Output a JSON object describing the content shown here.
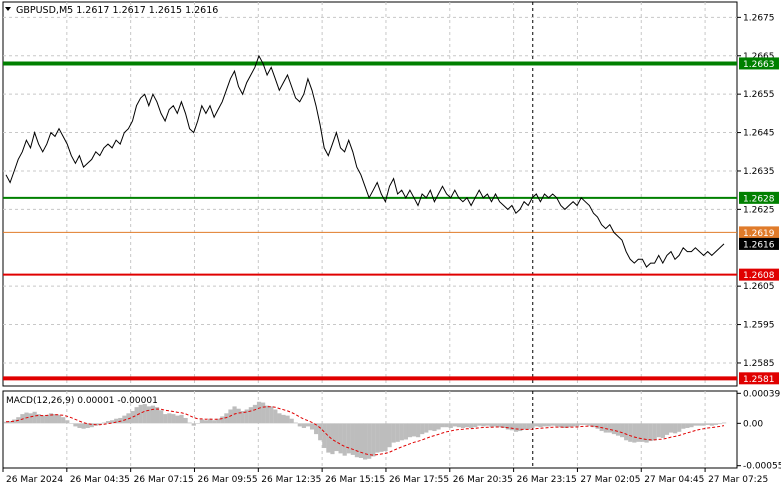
{
  "chart_data": {
    "type": "line",
    "symbol": "GBPUSD",
    "timeframe": "M5",
    "ohlc": [
      "1.2617",
      "1.2617",
      "1.2615",
      "1.2616"
    ],
    "y_ticks": [
      "1.2675",
      "1.2665",
      "1.2655",
      "1.2645",
      "1.2635",
      "1.2625",
      "1.2605",
      "1.2595",
      "1.2585"
    ],
    "ylim": [
      1.2579,
      1.2679
    ],
    "x_ticks": [
      "26 Mar 2024",
      "26 Mar 04:35",
      "26 Mar 07:15",
      "26 Mar 09:55",
      "26 Mar 12:35",
      "26 Mar 15:15",
      "26 Mar 17:55",
      "26 Mar 20:35",
      "26 Mar 23:15",
      "27 Mar 02:05",
      "27 Mar 04:45",
      "27 Mar 07:25"
    ],
    "levels": [
      {
        "value": 1.2663,
        "label": "1.2663",
        "color": "#008000",
        "width": "thick"
      },
      {
        "value": 1.2628,
        "label": "1.2628",
        "color": "#008000",
        "width": "medium"
      },
      {
        "value": 1.2619,
        "label": "1.2619",
        "color": "#e07b2a",
        "width": "thin"
      },
      {
        "value": 1.2616,
        "label": "1.2616",
        "color": "#000000",
        "width": "none"
      },
      {
        "value": 1.2608,
        "label": "1.2608",
        "color": "#e00000",
        "width": "medium"
      },
      {
        "value": 1.2581,
        "label": "1.2581",
        "color": "#e00000",
        "width": "thick"
      }
    ],
    "close_series": [
      1.2634,
      1.2632,
      1.2635,
      1.2638,
      1.264,
      1.2643,
      1.2641,
      1.2645,
      1.2642,
      1.264,
      1.2642,
      1.2645,
      1.2644,
      1.2646,
      1.2644,
      1.2642,
      1.2639,
      1.2637,
      1.2639,
      1.2636,
      1.2637,
      1.2638,
      1.264,
      1.2639,
      1.2641,
      1.2642,
      1.2641,
      1.2643,
      1.2642,
      1.2645,
      1.2646,
      1.2648,
      1.2652,
      1.2654,
      1.2655,
      1.2652,
      1.2655,
      1.2653,
      1.265,
      1.2648,
      1.2651,
      1.2652,
      1.265,
      1.2653,
      1.265,
      1.2646,
      1.2645,
      1.2648,
      1.2652,
      1.265,
      1.2652,
      1.2649,
      1.2651,
      1.2653,
      1.2656,
      1.2659,
      1.2661,
      1.2657,
      1.2655,
      1.2658,
      1.266,
      1.2662,
      1.2665,
      1.2663,
      1.266,
      1.2662,
      1.2659,
      1.2656,
      1.2658,
      1.266,
      1.2657,
      1.2654,
      1.2653,
      1.2655,
      1.2659,
      1.2656,
      1.2652,
      1.2647,
      1.2641,
      1.2639,
      1.2642,
      1.2645,
      1.2641,
      1.264,
      1.2643,
      1.264,
      1.2636,
      1.2634,
      1.2631,
      1.2628,
      1.263,
      1.2632,
      1.2629,
      1.2627,
      1.2631,
      1.2633,
      1.2629,
      1.263,
      1.2628,
      1.263,
      1.2628,
      1.2626,
      1.2629,
      1.2628,
      1.263,
      1.2627,
      1.2629,
      1.2631,
      1.2629,
      1.2628,
      1.263,
      1.2628,
      1.2627,
      1.2628,
      1.2626,
      1.2628,
      1.263,
      1.2628,
      1.2629,
      1.2627,
      1.2629,
      1.2627,
      1.2626,
      1.2625,
      1.2626,
      1.2624,
      1.2625,
      1.2627,
      1.2626,
      1.2628,
      1.2629,
      1.2627,
      1.2629,
      1.2628,
      1.2629,
      1.2628,
      1.2626,
      1.2625,
      1.2626,
      1.2627,
      1.2626,
      1.2628,
      1.2627,
      1.2626,
      1.2624,
      1.2623,
      1.2621,
      1.262,
      1.2621,
      1.2619,
      1.2618,
      1.2617,
      1.2614,
      1.2612,
      1.2611,
      1.2612,
      1.2612,
      1.261,
      1.2611,
      1.2611,
      1.2613,
      1.2611,
      1.2613,
      1.2614,
      1.2612,
      1.2613,
      1.2615,
      1.2614,
      1.2614,
      1.2615,
      1.2614,
      1.2613,
      1.2614,
      1.2613,
      1.2614,
      1.2615,
      1.2616
    ],
    "macd": {
      "label": "MACD(12,26,9)",
      "values": [
        "0.00001",
        "-0.00001"
      ],
      "y_ticks": [
        "0.00039",
        "0.00",
        "-0.00055"
      ],
      "ylim": [
        -0.00058,
        0.00042
      ],
      "histogram": [
        2e-05,
        3e-05,
        5e-05,
        8e-05,
        0.00012,
        0.00014,
        0.00013,
        0.00015,
        0.00012,
        0.0001,
        0.00011,
        0.00013,
        0.00012,
        0.00011,
        8e-05,
        4e-05,
        0.0,
        -4e-05,
        -6e-05,
        -7e-05,
        -6e-05,
        -5e-05,
        -3e-05,
        -2e-05,
        1e-05,
        3e-05,
        4e-05,
        6e-05,
        7e-05,
        0.0001,
        0.00013,
        0.00016,
        0.00021,
        0.00024,
        0.00025,
        0.00022,
        0.00023,
        0.00021,
        0.00017,
        0.00012,
        0.00013,
        0.00012,
        0.0001,
        0.00011,
        7e-05,
        1e-05,
        -3e-05,
        0.0,
        5e-05,
        4e-05,
        6e-05,
        4e-05,
        6e-05,
        9e-05,
        0.00013,
        0.00018,
        0.00022,
        0.00019,
        0.00016,
        0.00018,
        0.00021,
        0.00024,
        0.00028,
        0.00027,
        0.00023,
        0.00022,
        0.00018,
        0.00013,
        0.00011,
        0.0001,
        6e-05,
        1e-05,
        -4e-05,
        -6e-05,
        -4e-05,
        -8e-05,
        -0.00014,
        -0.00022,
        -0.00032,
        -0.00038,
        -0.0004,
        -0.00036,
        -0.00039,
        -0.00042,
        -0.00039,
        -0.00041,
        -0.00044,
        -0.00045,
        -0.00047,
        -0.00046,
        -0.00043,
        -0.00038,
        -0.00037,
        -0.00036,
        -0.00031,
        -0.00025,
        -0.00024,
        -0.00022,
        -0.00021,
        -0.00018,
        -0.00017,
        -0.00018,
        -0.00014,
        -0.00012,
        -9e-05,
        -0.0001,
        -8e-05,
        -5e-05,
        -5e-05,
        -6e-05,
        -4e-05,
        -5e-05,
        -6e-05,
        -5e-05,
        -6e-05,
        -5e-05,
        -3e-05,
        -4e-05,
        -3e-05,
        -5e-05,
        -4e-05,
        -5e-05,
        -6e-05,
        -8e-05,
        -9e-05,
        -0.00011,
        -0.0001,
        -8e-05,
        -8e-05,
        -6e-05,
        -4e-05,
        -5e-05,
        -4e-05,
        -4e-05,
        -3e-05,
        -4e-05,
        -5e-05,
        -6e-05,
        -5e-05,
        -4e-05,
        -4e-05,
        -2e-05,
        -2e-05,
        -3e-05,
        -5e-05,
        -7e-05,
        -0.0001,
        -0.00012,
        -0.00012,
        -0.00014,
        -0.00016,
        -0.00018,
        -0.00022,
        -0.00024,
        -0.00025,
        -0.00024,
        -0.00024,
        -0.00025,
        -0.00023,
        -0.00022,
        -0.00018,
        -0.00019,
        -0.00015,
        -0.00012,
        -0.00013,
        -0.00011,
        -7e-05,
        -6e-05,
        -5e-05,
        -3e-05,
        -3e-05,
        -3e-05,
        -2e-05,
        -3e-05,
        -2e-05,
        -1e-05,
        1e-05
      ]
    },
    "grid": true,
    "colors": {
      "price_line": "#000000",
      "histogram": "#bdbdbd",
      "signal": "#e00000",
      "grid": "#c8c8c8"
    }
  }
}
